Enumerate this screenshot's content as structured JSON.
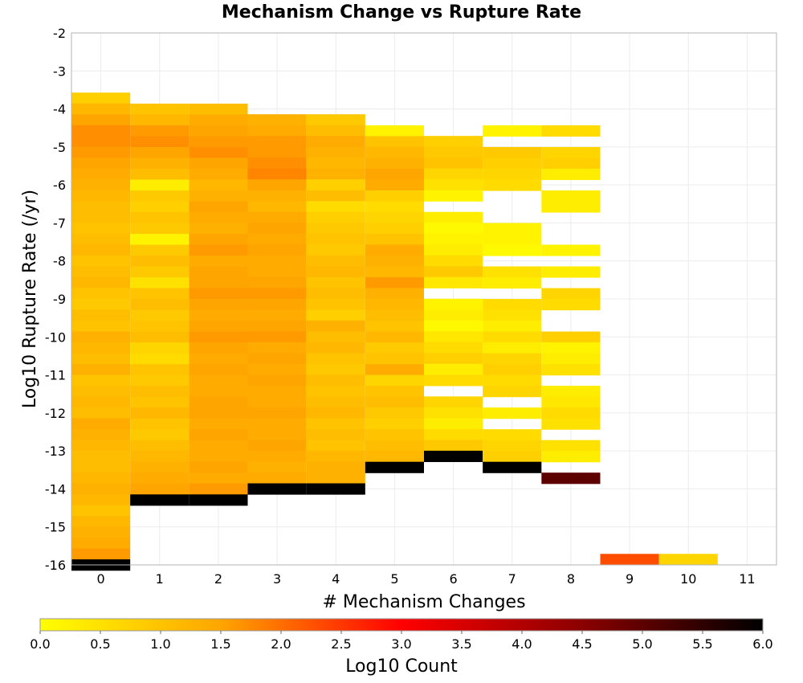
{
  "chart_data": {
    "type": "heatmap",
    "title": "Mechanism Change vs Rupture Rate",
    "xlabel": "# Mechanism Changes",
    "ylabel": "Log10 Rupture Rate (/yr)",
    "x_ticks": [
      "0",
      "1",
      "2",
      "3",
      "4",
      "5",
      "6",
      "7",
      "8",
      "9",
      "10",
      "11"
    ],
    "y_ticks": [
      "-2",
      "-3",
      "-4",
      "-5",
      "-6",
      "-7",
      "-8",
      "-9",
      "-10",
      "-11",
      "-12",
      "-13",
      "-14",
      "-15",
      "-16"
    ],
    "xlim": [
      -0.5,
      11.5
    ],
    "ylim": [
      -16,
      -2
    ],
    "bin_height": 0.2857,
    "grid": true,
    "colorbar": {
      "label": "Log10 Count",
      "ticks": [
        "0.0",
        "0.5",
        "1.0",
        "1.5",
        "2.0",
        "2.5",
        "3.0",
        "3.5",
        "4.0",
        "4.5",
        "5.0",
        "5.5",
        "6.0"
      ],
      "range": [
        0,
        6
      ],
      "colors": [
        "#ffff00",
        "#ffa500",
        "#ff0000",
        "#8b0000",
        "#000000"
      ]
    },
    "columns": [
      {
        "x": 0,
        "top": -3.57,
        "values": [
          0.8,
          1.2,
          1.5,
          1.7,
          1.7,
          1.6,
          1.5,
          1.4,
          1.3,
          1.2,
          1.1,
          1.1,
          1.0,
          1.1,
          1.2,
          1.0,
          1.1,
          1.2,
          1.0,
          0.9,
          1.1,
          1.0,
          1.3,
          1.2,
          1.1,
          1.3,
          1.0,
          1.1,
          1.2,
          1.1,
          1.4,
          1.3,
          1.2,
          1.1,
          1.1,
          1.2,
          1.3,
          1.2,
          1.0,
          1.2,
          1.3,
          1.4,
          1.6,
          6.0
        ]
      },
      {
        "x": 1,
        "top": -3.86,
        "values": [
          1.0,
          1.2,
          1.6,
          1.7,
          1.5,
          1.3,
          1.1,
          0.3,
          0.9,
          0.8,
          1.0,
          0.9,
          0.2,
          0.9,
          1.1,
          0.9,
          0.5,
          1.0,
          1.1,
          0.9,
          1.0,
          1.1,
          0.7,
          0.6,
          1.0,
          0.9,
          1.1,
          1.0,
          1.2,
          1.0,
          0.9,
          1.1,
          1.2,
          1.3,
          1.4,
          1.5,
          6.0
        ]
      },
      {
        "x": 2,
        "top": -3.86,
        "values": [
          1.1,
          1.4,
          1.5,
          1.6,
          1.7,
          1.5,
          1.4,
          1.2,
          1.3,
          1.5,
          1.4,
          1.3,
          1.5,
          1.6,
          1.4,
          1.5,
          1.5,
          1.6,
          1.5,
          1.4,
          1.5,
          1.6,
          1.5,
          1.4,
          1.5,
          1.4,
          1.4,
          1.5,
          1.5,
          1.4,
          1.5,
          1.4,
          1.4,
          1.5,
          1.4,
          1.6,
          6.0
        ]
      },
      {
        "x": 3,
        "top": -4.14,
        "values": [
          1.3,
          1.4,
          1.6,
          1.6,
          1.7,
          1.8,
          1.5,
          1.3,
          1.2,
          1.4,
          1.5,
          1.4,
          1.5,
          1.4,
          1.4,
          1.5,
          1.6,
          1.5,
          1.4,
          1.5,
          1.6,
          1.4,
          1.5,
          1.4,
          1.5,
          1.4,
          1.4,
          1.5,
          1.4,
          1.4,
          1.5,
          1.4,
          1.3,
          1.4,
          6.0
        ]
      },
      {
        "x": 4,
        "top": -4.14,
        "values": [
          0.9,
          1.1,
          1.4,
          1.3,
          1.2,
          1.3,
          0.8,
          1.1,
          0.6,
          0.8,
          0.9,
          1.0,
          0.9,
          1.1,
          1.2,
          1.0,
          1.1,
          1.0,
          0.8,
          1.3,
          1.1,
          1.2,
          1.0,
          0.9,
          1.1,
          1.0,
          1.1,
          1.2,
          1.0,
          1.1,
          1.0,
          1.2,
          1.3,
          1.3,
          6.0
        ]
      },
      {
        "x": 5,
        "top": -4.43,
        "values": [
          0.2,
          1.0,
          1.2,
          1.3,
          1.5,
          1.4,
          0.8,
          0.6,
          0.7,
          0.8,
          1.0,
          1.4,
          1.3,
          1.2,
          1.6,
          1.3,
          1.2,
          1.1,
          1.0,
          1.2,
          0.9,
          1.0,
          1.4,
          0.7,
          1.0,
          1.1,
          0.9,
          0.8,
          1.0,
          1.1,
          1.2,
          6.0
        ]
      },
      {
        "x": 6,
        "top": -4.71,
        "values": [
          0.8,
          0.9,
          1.0,
          0.7,
          0.5,
          0.2,
          null,
          0.3,
          0.1,
          0.2,
          0.3,
          0.6,
          0.9,
          0.4,
          null,
          0.2,
          0.3,
          0.1,
          0.4,
          0.6,
          0.8,
          0.3,
          0.6,
          null,
          0.7,
          0.5,
          0.3,
          0.6,
          0.9,
          6.0
        ]
      },
      {
        "x": 7,
        "top": -4.43,
        "values": [
          0.2,
          null,
          0.9,
          0.8,
          0.7,
          0.6,
          null,
          null,
          null,
          0.2,
          0.2,
          0.1,
          null,
          0.5,
          0.3,
          null,
          0.6,
          0.5,
          0.3,
          0.6,
          0.3,
          0.7,
          0.8,
          0.6,
          0.7,
          null,
          0.3,
          null,
          0.6,
          0.7,
          0.8,
          6.0
        ]
      },
      {
        "x": 8,
        "top": -4.43,
        "values": [
          0.6,
          null,
          0.7,
          0.8,
          0.3,
          null,
          0.3,
          0.3,
          null,
          null,
          null,
          0.2,
          null,
          0.3,
          null,
          0.7,
          0.6,
          null,
          null,
          0.8,
          0.2,
          0.3,
          0.5,
          null,
          0.3,
          0.4,
          0.6,
          0.5,
          null,
          0.5,
          0.3,
          null,
          5.0
        ]
      },
      {
        "x": 9,
        "top": -15.71,
        "values": [
          2.3
        ]
      },
      {
        "x": 10,
        "top": -15.71,
        "values": [
          0.7
        ]
      },
      {
        "x": 11,
        "top": -15.71,
        "values": [
          null
        ]
      }
    ]
  }
}
